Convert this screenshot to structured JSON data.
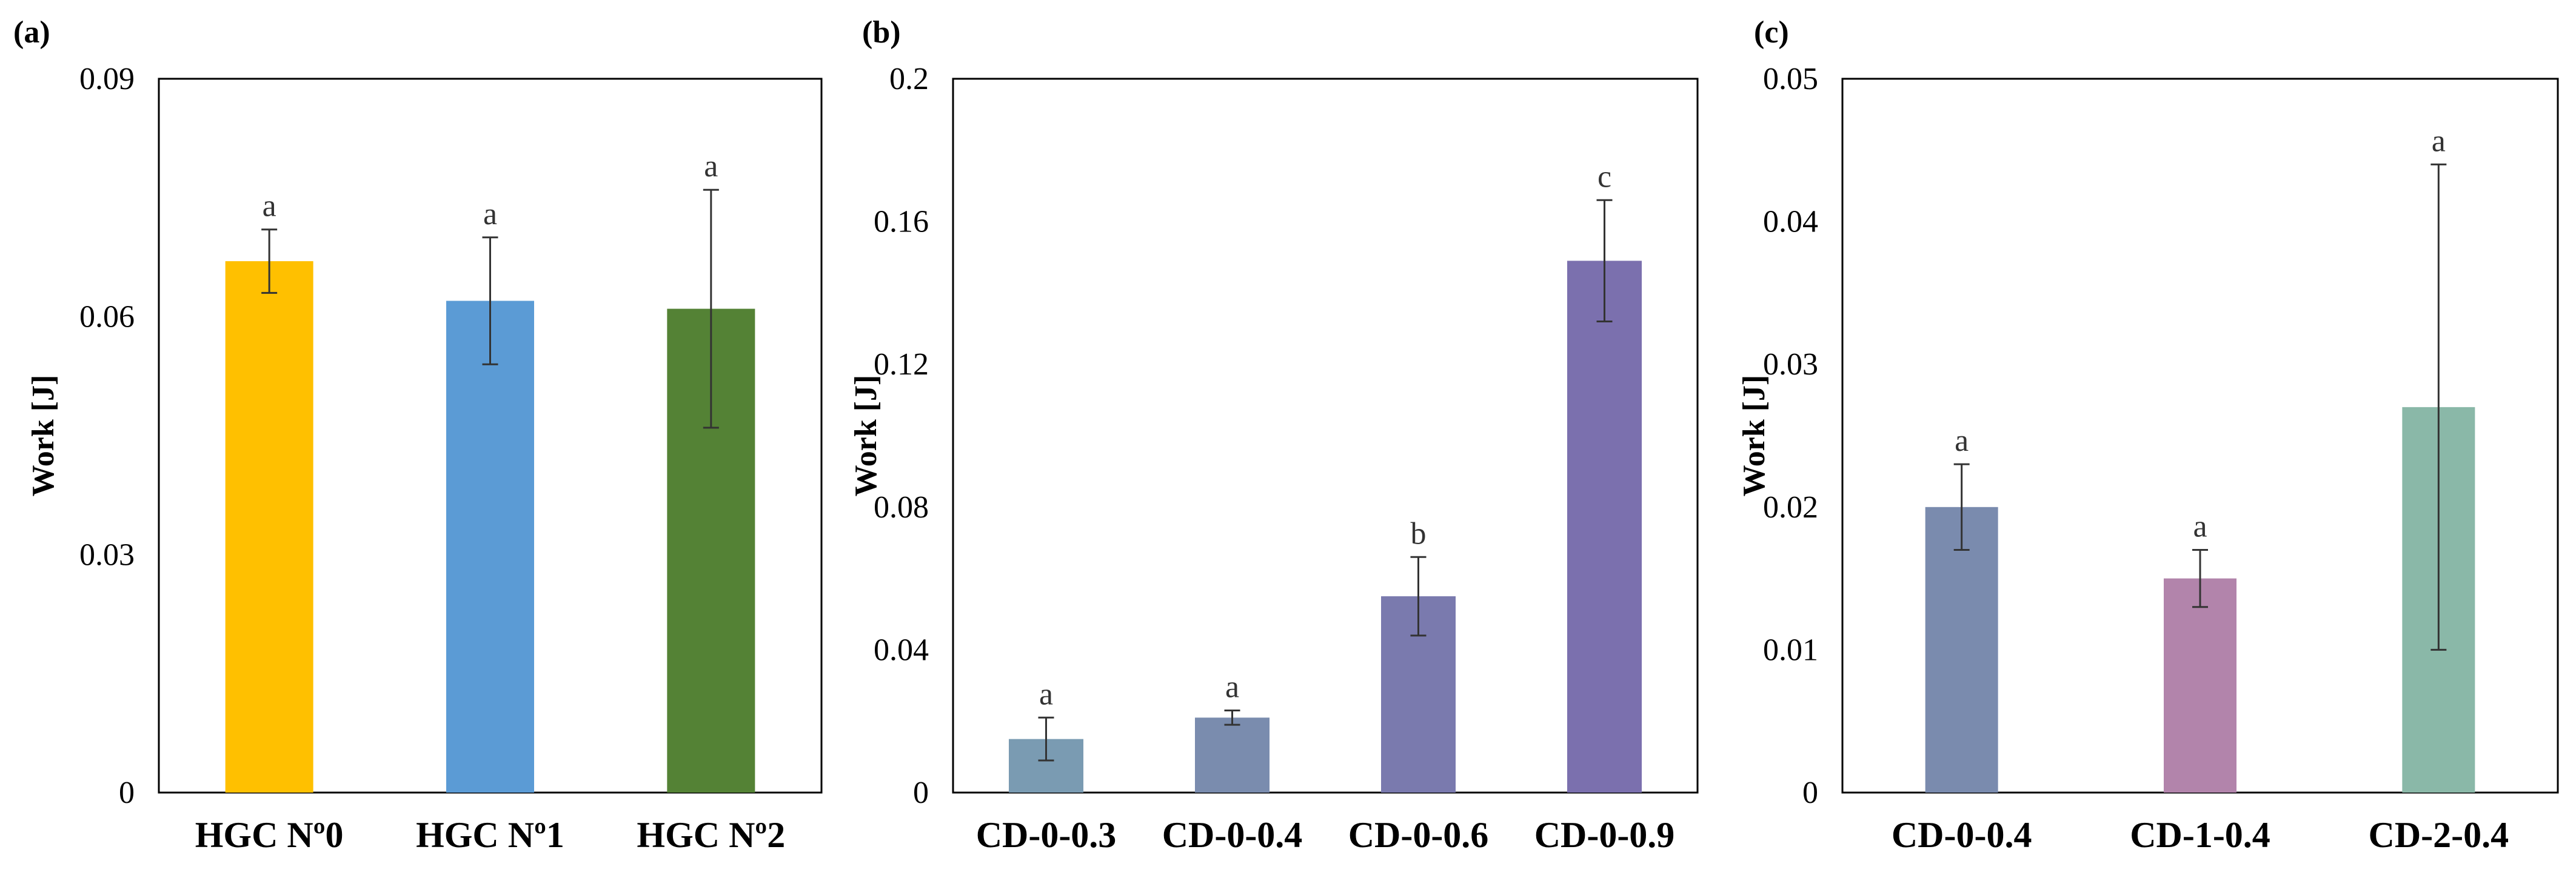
{
  "chart_data": [
    {
      "panel_label": "(a)",
      "type": "bar",
      "ylabel": "Work [J]",
      "ylim": [
        0,
        0.09
      ],
      "yticks": [
        "0",
        "0.03",
        "0.06",
        "0.09"
      ],
      "grid": false,
      "categories": [
        "HGC Nº0",
        "HGC Nº1",
        "HGC Nº2"
      ],
      "values": [
        0.067,
        0.062,
        0.061
      ],
      "errors": [
        0.004,
        0.008,
        0.015
      ],
      "significance": [
        "a",
        "a",
        "a"
      ],
      "colors": [
        "#FFC000",
        "#5B9BD5",
        "#548235"
      ]
    },
    {
      "panel_label": "(b)",
      "type": "bar",
      "ylabel": "Work [J]",
      "ylim": [
        0,
        0.2
      ],
      "yticks": [
        "0",
        "0.04",
        "0.08",
        "0.12",
        "0.16",
        "0.2"
      ],
      "grid": false,
      "categories": [
        "CD-0-0.3",
        "CD-0-0.4",
        "CD-0-0.6",
        "CD-0-0.9"
      ],
      "values": [
        0.015,
        0.021,
        0.055,
        0.149
      ],
      "errors": [
        0.006,
        0.002,
        0.011,
        0.017
      ],
      "significance": [
        "a",
        "a",
        "b",
        "c"
      ],
      "colors": [
        "#7A9BB2",
        "#7A8CAE",
        "#7A7AAE",
        "#7B70AE"
      ]
    },
    {
      "panel_label": "(c)",
      "type": "bar",
      "ylabel": "Work [J]",
      "ylim": [
        0,
        0.05
      ],
      "yticks": [
        "0",
        "0.01",
        "0.02",
        "0.03",
        "0.04",
        "0.05"
      ],
      "grid": false,
      "categories": [
        "CD-0-0.4",
        "CD-1-0.4",
        "CD-2-0.4"
      ],
      "values": [
        0.02,
        0.015,
        0.027
      ],
      "errors": [
        0.003,
        0.002,
        0.017
      ],
      "significance": [
        "a",
        "a",
        "a"
      ],
      "colors": [
        "#7A8BAE",
        "#B284AB",
        "#8AB8A8"
      ]
    }
  ]
}
